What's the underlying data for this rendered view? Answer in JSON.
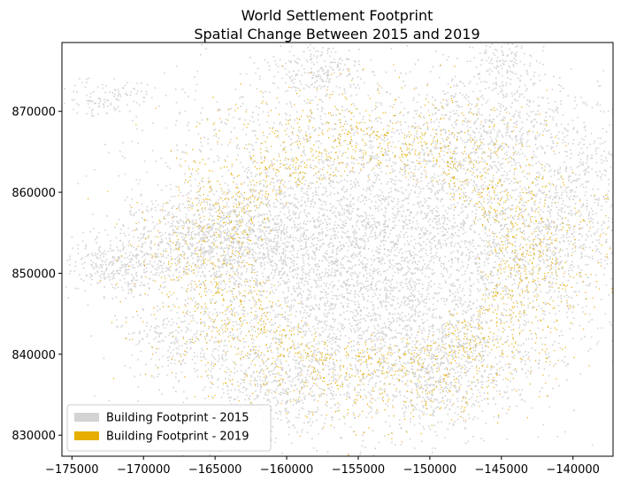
{
  "chart_data": {
    "type": "map",
    "title": "World Settlement Footprint",
    "subtitle": "Spatial Change Between 2015 and 2019",
    "xlim": [
      -175700,
      -137200
    ],
    "ylim": [
      827400,
      878500
    ],
    "xticks": [
      {
        "value": -175000,
        "label": "−175000"
      },
      {
        "value": -170000,
        "label": "−170000"
      },
      {
        "value": -165000,
        "label": "−165000"
      },
      {
        "value": -160000,
        "label": "−160000"
      },
      {
        "value": -155000,
        "label": "−155000"
      },
      {
        "value": -150000,
        "label": "−150000"
      },
      {
        "value": -145000,
        "label": "−145000"
      },
      {
        "value": -140000,
        "label": "−140000"
      }
    ],
    "yticks": [
      830000,
      840000,
      850000,
      860000,
      870000
    ],
    "series": [
      {
        "name": "Building Footprint - 2015",
        "color": "#d3d3d3"
      },
      {
        "name": "Building Footprint - 2019",
        "color": "#e6ae00"
      }
    ],
    "legend": "lower left"
  }
}
